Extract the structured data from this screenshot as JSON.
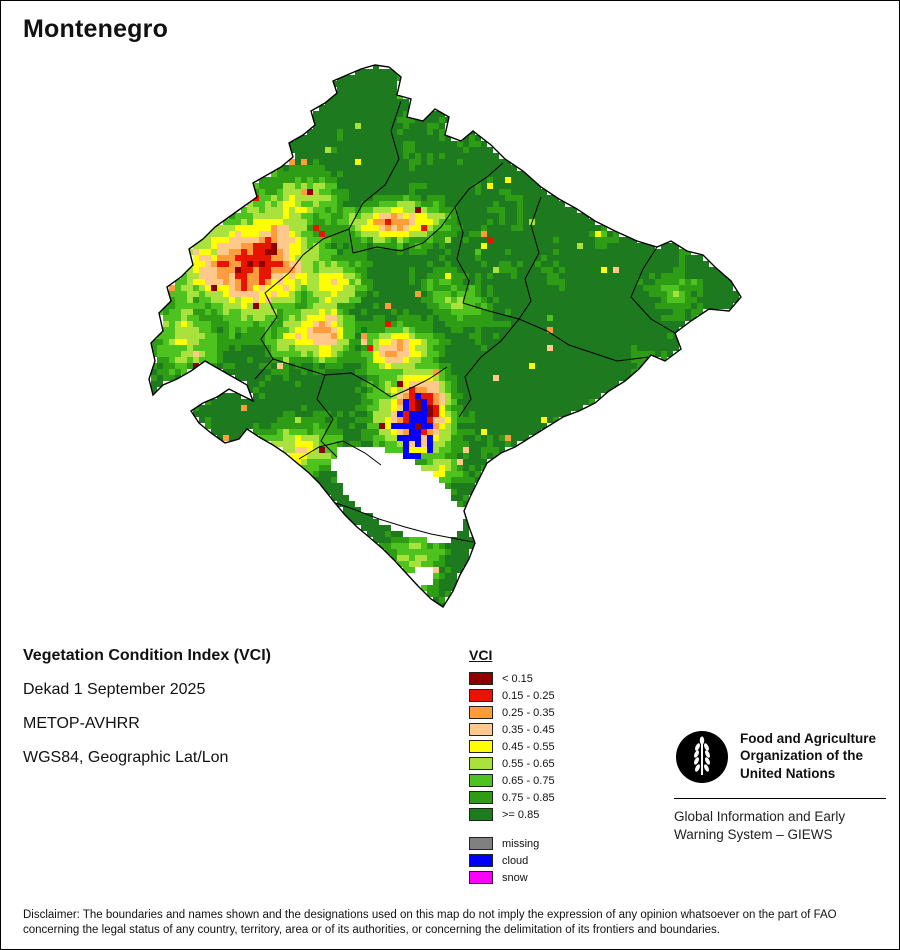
{
  "title": "Montenegro",
  "info": {
    "index_name": "Vegetation Condition Index (VCI)",
    "dekad": "Dekad 1 September 2025",
    "sensor": "METOP-AVHRR",
    "projection": "WGS84, Geographic Lat/Lon"
  },
  "legend": {
    "title": "VCI",
    "classes": [
      {
        "label": "< 0.15",
        "color": "#8E0000"
      },
      {
        "label": "0.15 - 0.25",
        "color": "#E81400"
      },
      {
        "label": "0.25 - 0.35",
        "color": "#FF9D3D"
      },
      {
        "label": "0.35 - 0.45",
        "color": "#FFC98B"
      },
      {
        "label": "0.45 - 0.55",
        "color": "#FFFF00"
      },
      {
        "label": "0.55 - 0.65",
        "color": "#A9E23C"
      },
      {
        "label": "0.65 - 0.75",
        "color": "#4EC21E"
      },
      {
        "label": "0.75 - 0.85",
        "color": "#2E9C14"
      },
      {
        "label": ">= 0.85",
        "color": "#1E7A1E"
      }
    ],
    "extra_classes": [
      {
        "label": "missing",
        "color": "#808080"
      },
      {
        "label": "cloud",
        "color": "#0000FF"
      },
      {
        "label": "snow",
        "color": "#FF00FF"
      }
    ]
  },
  "footer": {
    "fao_logo_icon": "fao-wheat-emblem",
    "fao_name": "Food and Agriculture\nOrganization of the\nUnited Nations",
    "giews": "Global Information and Early\nWarning System – GIEWS"
  },
  "disclaimer": "Disclaimer: The boundaries and names shown and the designations used on this map do not imply the expression of any opinion whatsoever on the part of FAO concerning the legal status of any country, territory, area or of its authorities, or concerning the delimitation of its frontiers and boundaries."
}
